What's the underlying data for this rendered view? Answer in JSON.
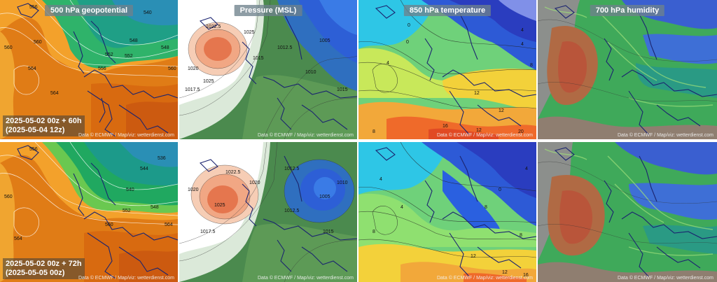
{
  "titles": {
    "geopotential": "500 hPa geopotential",
    "pressure": "Pressure (MSL)",
    "temperature": "850 hPa temperature",
    "humidity": "700 hPa humidity"
  },
  "runs": [
    {
      "line1": "2025-05-02 00z + 60h",
      "line2": "(2025-05-04 12z)"
    },
    {
      "line1": "2025-05-02 00z + 72h",
      "line2": "(2025-05-05 00z)"
    }
  ],
  "credit": "Data © ECMWF / Map/viz: wetterdienst.com",
  "contour_labels": {
    "geopotential_top": [
      "556",
      "560",
      "564",
      "560",
      "552",
      "540",
      "548",
      "564",
      "556",
      "548",
      "552",
      "560",
      "556",
      "564",
      "568"
    ],
    "geopotential_bottom": [
      "556",
      "560",
      "564",
      "552",
      "544",
      "536",
      "540",
      "548",
      "560",
      "564",
      "552",
      "568"
    ],
    "pressure_top": [
      "1025",
      "1022.5",
      "1020",
      "1025",
      "1017.5",
      "1015",
      "1010",
      "1012.5",
      "1005",
      "1015",
      "1012.5",
      "1010"
    ],
    "pressure_bottom": [
      "1022.5",
      "1020",
      "1017.5",
      "1025",
      "1012.5",
      "1010",
      "1005",
      "1015",
      "1012.5",
      "1020"
    ],
    "temperature_top": [
      "0",
      "4",
      "4",
      "8",
      "8",
      "12",
      "12",
      "12",
      "16",
      "20",
      "4",
      "0"
    ],
    "temperature_bottom": [
      "4",
      "4",
      "8",
      "8",
      "0",
      "4",
      "8",
      "12",
      "12",
      "16"
    ]
  },
  "colors": {
    "geo_warm": "#e8861a",
    "geo_cool": "#1ca86a",
    "pres_high": "#e98560",
    "pres_low": "#2b6fd6",
    "temp_cold": "#2a3fc8",
    "temp_warm": "#f0b030",
    "hum_dry": "#b9603c",
    "hum_wet": "#3a5fd0"
  }
}
